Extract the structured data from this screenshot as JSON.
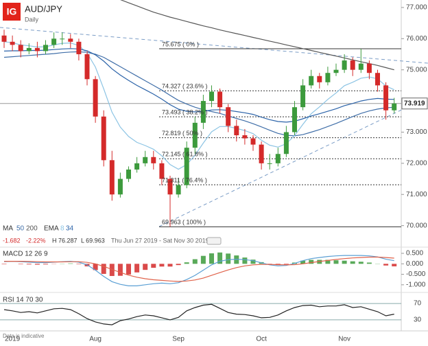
{
  "header": {
    "title": "AUD/JPY",
    "subtitle": "Daily",
    "logo": "IG"
  },
  "legend": {
    "ma": "MA",
    "ema": "EMA"
  },
  "info": {
    "change": "-1.682",
    "change_pct": "-2.22%",
    "high": "H 76.287",
    "low": "L 69.963",
    "range": "Thu Jun 27 2019 - Sat Nov 30 2019"
  },
  "footer": "Data is indicative",
  "chart_data": [
    {
      "type": "candlestick",
      "categories": [
        null,
        "2019",
        null,
        null,
        null,
        null,
        null,
        null,
        null,
        null,
        null,
        "Aug",
        null,
        null,
        null,
        null,
        null,
        null,
        null,
        null,
        null,
        "Sep",
        null,
        null,
        null,
        null,
        null,
        null,
        null,
        null,
        null,
        "Oct",
        null,
        null,
        null,
        null,
        null,
        null,
        null,
        null,
        null,
        "Nov",
        null,
        null,
        null,
        null,
        null,
        null
      ],
      "open": [
        76.1,
        75.9,
        75.8,
        75.6,
        75.7,
        75.6,
        75.8,
        76.0,
        76.0,
        75.9,
        75.5,
        74.7,
        73.5,
        72.1,
        71.0,
        71.5,
        71.8,
        72.0,
        72.2,
        72.0,
        71.5,
        71.0,
        71.3,
        72.5,
        73.3,
        74.0,
        74.3,
        73.8,
        73.2,
        72.9,
        72.8,
        72.6,
        72.0,
        72.0,
        72.3,
        73.0,
        73.8,
        74.5,
        74.8,
        74.6,
        74.9,
        75.0,
        75.3,
        75.0,
        75.2,
        74.9,
        74.5,
        73.7
      ],
      "high": [
        76.287,
        76.1,
        75.95,
        75.85,
        75.9,
        75.95,
        76.2,
        76.2,
        76.15,
        76.0,
        75.6,
        74.8,
        73.7,
        72.4,
        71.7,
        71.9,
        72.2,
        72.4,
        72.4,
        72.1,
        71.6,
        71.5,
        72.7,
        73.5,
        74.2,
        74.5,
        74.4,
        73.9,
        73.4,
        73.1,
        72.9,
        72.7,
        72.3,
        72.5,
        73.2,
        74.0,
        74.7,
        75.0,
        74.9,
        75.1,
        75.2,
        75.5,
        75.4,
        75.675,
        75.3,
        75.0,
        74.6,
        74.1
      ],
      "low": [
        75.7,
        75.6,
        75.4,
        75.5,
        75.4,
        75.5,
        75.7,
        75.8,
        75.7,
        75.3,
        74.5,
        73.3,
        71.9,
        70.8,
        70.9,
        71.4,
        71.7,
        71.9,
        71.8,
        71.3,
        69.963,
        70.9,
        71.2,
        72.3,
        73.1,
        73.8,
        73.6,
        73.0,
        72.7,
        72.6,
        72.4,
        71.8,
        71.8,
        71.9,
        72.2,
        72.9,
        73.7,
        74.4,
        74.4,
        74.5,
        74.8,
        74.9,
        74.8,
        74.9,
        74.7,
        74.3,
        73.4,
        73.6
      ],
      "close": [
        75.9,
        75.8,
        75.6,
        75.7,
        75.6,
        75.8,
        76.0,
        76.0,
        75.9,
        75.5,
        74.7,
        73.5,
        72.1,
        71.0,
        71.5,
        71.8,
        72.0,
        72.2,
        72.0,
        71.5,
        71.0,
        71.3,
        72.5,
        73.3,
        74.0,
        74.3,
        73.8,
        73.2,
        72.9,
        72.8,
        72.6,
        72.0,
        72.0,
        72.3,
        73.0,
        73.8,
        74.5,
        74.8,
        74.6,
        74.9,
        75.0,
        75.3,
        75.0,
        75.2,
        74.9,
        74.5,
        73.7,
        73.919
      ],
      "up_color": "#3c9a3c",
      "down_color": "#d42a2a",
      "series": [
        {
          "name": "50",
          "color": "#3f6ea8",
          "values": [
            75.4,
            75.42,
            75.44,
            75.46,
            75.48,
            75.5,
            75.52,
            75.55,
            75.57,
            75.58,
            75.56,
            75.5,
            75.4,
            75.25,
            75.1,
            74.95,
            74.8,
            74.65,
            74.5,
            74.35,
            74.18,
            74.02,
            73.9,
            73.8,
            73.72,
            73.66,
            73.6,
            73.52,
            73.44,
            73.36,
            73.27,
            73.17,
            73.06,
            72.96,
            72.9,
            72.88,
            72.92,
            73.0,
            73.08,
            73.18,
            73.28,
            73.39,
            73.5,
            73.6,
            73.68,
            73.74,
            73.78,
            73.8
          ]
        },
        {
          "name": "200",
          "color": "#555555",
          "values": [
            null,
            null,
            null,
            null,
            null,
            null,
            null,
            null,
            null,
            null,
            null,
            null,
            null,
            null,
            77.25,
            77.15,
            77.05,
            76.95,
            76.85,
            76.77,
            76.69,
            76.62,
            76.55,
            76.48,
            76.41,
            76.35,
            76.28,
            76.22,
            76.16,
            76.1,
            76.04,
            75.98,
            75.92,
            75.86,
            75.8,
            75.74,
            75.68,
            75.62,
            75.56,
            75.5,
            75.44,
            75.38,
            75.32,
            75.26,
            75.2,
            75.14,
            75.07,
            75.0
          ]
        },
        {
          "name": "8",
          "color": "#8cc4e4",
          "values": [
            75.9,
            75.87,
            75.8,
            75.77,
            75.73,
            75.74,
            75.8,
            75.85,
            75.86,
            75.78,
            75.54,
            75.09,
            74.39,
            73.64,
            73.16,
            72.86,
            72.67,
            72.57,
            72.45,
            72.24,
            71.96,
            71.81,
            71.96,
            72.26,
            72.65,
            73.01,
            73.18,
            73.18,
            73.12,
            73.05,
            72.95,
            72.74,
            72.58,
            72.52,
            72.63,
            72.89,
            73.25,
            73.59,
            73.81,
            74.05,
            74.26,
            74.49,
            74.6,
            74.73,
            74.77,
            74.71,
            74.48,
            74.36
          ]
        },
        {
          "name": "34",
          "color": "#2a62a8",
          "values": [
            75.6,
            75.61,
            75.61,
            75.62,
            75.62,
            75.63,
            75.65,
            75.67,
            75.68,
            75.67,
            75.61,
            75.48,
            75.28,
            75.03,
            74.83,
            74.66,
            74.5,
            74.36,
            74.22,
            74.06,
            73.88,
            73.74,
            73.67,
            73.65,
            73.67,
            73.71,
            73.72,
            73.7,
            73.66,
            73.62,
            73.57,
            73.48,
            73.4,
            73.34,
            73.32,
            73.35,
            73.43,
            73.52,
            73.59,
            73.67,
            73.75,
            73.85,
            73.92,
            74.0,
            74.05,
            74.08,
            74.06,
            74.05
          ]
        }
      ],
      "fib_levels": [
        {
          "value": 75.675,
          "label": "75.675 ( 0% )"
        },
        {
          "value": 74.327,
          "label": "74.327 ( 23.6% )"
        },
        {
          "value": 73.493,
          "label": "73.493 ( 38.2% )"
        },
        {
          "value": 72.819,
          "label": "72.819 ( 50% )"
        },
        {
          "value": 72.145,
          "label": "72.145 ( 61.8% )"
        },
        {
          "value": 71.311,
          "label": "71.311 ( 76.4% )"
        },
        {
          "value": 69.963,
          "label": "69.963 ( 100% )"
        }
      ],
      "last_price": 73.919,
      "ylim": [
        69.75,
        77.24
      ],
      "yticks": [
        {
          "value": 77,
          "label": "77.000"
        },
        {
          "value": 76,
          "label": "76.000"
        },
        {
          "value": 75,
          "label": "75.000"
        },
        {
          "value": 74,
          "label": "74.000"
        },
        {
          "value": 73,
          "label": "73.000"
        },
        {
          "value": 72,
          "label": "72.000"
        },
        {
          "value": 71,
          "label": "71.000"
        },
        {
          "value": 70,
          "label": "70.000"
        }
      ]
    },
    {
      "type": "macd",
      "title": "MACD 12 26 9",
      "series": [
        {
          "name": "MACD",
          "color": "#5a9fd4",
          "values": [
            0.1,
            0.12,
            0.1,
            0.08,
            0.06,
            0.06,
            0.08,
            0.1,
            0.12,
            0.08,
            -0.05,
            -0.3,
            -0.6,
            -0.85,
            -0.98,
            -1.05,
            -1.05,
            -1.0,
            -0.95,
            -0.92,
            -0.95,
            -0.9,
            -0.75,
            -0.55,
            -0.3,
            -0.05,
            0.12,
            0.2,
            0.22,
            0.2,
            0.15,
            0.05,
            -0.05,
            -0.1,
            -0.08,
            0.02,
            0.15,
            0.25,
            0.3,
            0.35,
            0.38,
            0.4,
            0.4,
            0.4,
            0.38,
            0.33,
            0.22,
            0.15
          ]
        },
        {
          "name": "Signal",
          "color": "#e0624a",
          "values": [
            0.12,
            0.12,
            0.12,
            0.11,
            0.1,
            0.09,
            0.09,
            0.09,
            0.1,
            0.1,
            0.07,
            0.0,
            -0.12,
            -0.27,
            -0.41,
            -0.54,
            -0.64,
            -0.71,
            -0.76,
            -0.79,
            -0.82,
            -0.84,
            -0.82,
            -0.77,
            -0.68,
            -0.55,
            -0.42,
            -0.29,
            -0.18,
            -0.1,
            -0.05,
            -0.03,
            -0.03,
            -0.04,
            -0.05,
            -0.04,
            0.0,
            0.06,
            0.11,
            0.16,
            0.21,
            0.25,
            0.28,
            0.3,
            0.32,
            0.32,
            0.3,
            0.27
          ]
        }
      ],
      "histogram": [
        -0.02,
        0,
        -0.02,
        -0.03,
        -0.04,
        -0.03,
        -0.01,
        0.01,
        0.02,
        -0.02,
        -0.12,
        -0.3,
        -0.48,
        -0.58,
        -0.57,
        -0.51,
        -0.41,
        -0.29,
        -0.19,
        -0.13,
        -0.13,
        -0.06,
        0.07,
        0.22,
        0.38,
        0.5,
        0.54,
        0.49,
        0.4,
        0.3,
        0.2,
        0.08,
        -0.02,
        -0.06,
        -0.03,
        0.06,
        0.15,
        0.19,
        0.19,
        0.19,
        0.17,
        0.15,
        0.12,
        0.1,
        0.06,
        0.01,
        -0.08,
        -0.12
      ],
      "up_color": "#3c9a3c",
      "down_color": "#d42a2a",
      "ylim": [
        -1.3,
        0.73
      ],
      "yticks": [
        {
          "value": 0.5,
          "label": "0.500"
        },
        {
          "value": 0,
          "label": "0.000"
        },
        {
          "value": -0.5,
          "label": "-0.500"
        },
        {
          "value": -1,
          "label": "-1.000"
        }
      ]
    },
    {
      "type": "rsi",
      "title": "RSI 14 70 30",
      "values": [
        55,
        52,
        48,
        50,
        47,
        52,
        57,
        58,
        55,
        45,
        33,
        25,
        20,
        18,
        28,
        32,
        38,
        42,
        40,
        35,
        30,
        36,
        52,
        60,
        66,
        68,
        58,
        48,
        44,
        43,
        40,
        35,
        36,
        42,
        52,
        60,
        65,
        66,
        62,
        64,
        64,
        67,
        60,
        62,
        56,
        50,
        40,
        44
      ],
      "color": "#222222",
      "ylim": [
        6.4,
        93.6
      ],
      "yticks": [
        70,
        30
      ]
    }
  ]
}
